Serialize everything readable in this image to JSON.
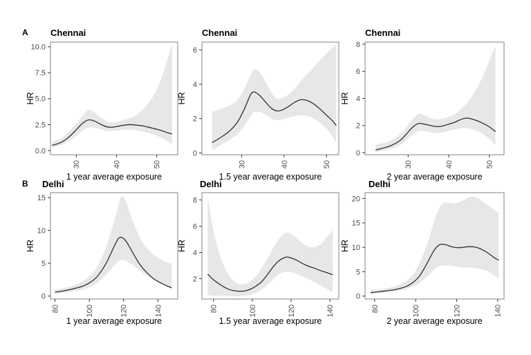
{
  "figure": {
    "background": "#ffffff",
    "colors": {
      "band": "#e7e7e7",
      "curve": "#2e2e2e",
      "panel_border": "#8c8c8c",
      "tick": "#333333",
      "tick_label": "#4d4d4d",
      "text": "#000000"
    },
    "rows": [
      {
        "letter": "A",
        "city": "Chennai"
      },
      {
        "letter": "B",
        "city": "Delhi"
      }
    ]
  },
  "chart_data": [
    {
      "type": "line",
      "title": "Chennai",
      "xlabel": "1 year average exposure",
      "ylabel": "HR",
      "row": 0,
      "col": 0,
      "xlim": [
        23.6,
        55.2
      ],
      "ylim": [
        -0.4,
        10.45
      ],
      "x_ticks": [
        30,
        40,
        50
      ],
      "x_tick_labels": [
        "30",
        "40",
        "50"
      ],
      "y_ticks": [
        0,
        2.5,
        5,
        7.5,
        10
      ],
      "y_tick_labels": [
        "0.0",
        "2.5",
        "5.0",
        "7.5",
        "10.0"
      ],
      "grid": false,
      "curve": [
        [
          24,
          0.5
        ],
        [
          26,
          0.75
        ],
        [
          28,
          1.25
        ],
        [
          30,
          2.0
        ],
        [
          31.5,
          2.6
        ],
        [
          33,
          2.95
        ],
        [
          34.5,
          2.85
        ],
        [
          36,
          2.55
        ],
        [
          37.5,
          2.3
        ],
        [
          39,
          2.25
        ],
        [
          40.5,
          2.35
        ],
        [
          42,
          2.45
        ],
        [
          43.5,
          2.5
        ],
        [
          45,
          2.45
        ],
        [
          46.5,
          2.38
        ],
        [
          48,
          2.25
        ],
        [
          49.5,
          2.1
        ],
        [
          51,
          1.95
        ],
        [
          52.5,
          1.75
        ],
        [
          53.8,
          1.6
        ]
      ],
      "band": [
        [
          24,
          0.3,
          0.85
        ],
        [
          26,
          0.5,
          1.1
        ],
        [
          28,
          0.85,
          1.75
        ],
        [
          30,
          1.4,
          2.6
        ],
        [
          31.5,
          1.9,
          3.3
        ],
        [
          33,
          2.2,
          3.95
        ],
        [
          34.5,
          2.2,
          3.7
        ],
        [
          36,
          2.05,
          3.2
        ],
        [
          37.5,
          1.9,
          2.85
        ],
        [
          39,
          1.9,
          2.7
        ],
        [
          40.5,
          1.95,
          2.8
        ],
        [
          42,
          2.0,
          2.95
        ],
        [
          43.5,
          2.0,
          3.15
        ],
        [
          45,
          1.95,
          3.45
        ],
        [
          46.5,
          1.85,
          3.95
        ],
        [
          48,
          1.7,
          4.6
        ],
        [
          49.5,
          1.5,
          5.5
        ],
        [
          51,
          1.25,
          6.8
        ],
        [
          52.5,
          0.95,
          8.6
        ],
        [
          53.8,
          0.6,
          10.3
        ]
      ]
    },
    {
      "type": "line",
      "title": "Chennai",
      "xlabel": "1.5 year average exposure",
      "ylabel": "HR",
      "row": 0,
      "col": 1,
      "xlim": [
        20.6,
        52.9
      ],
      "ylim": [
        -0.1,
        6.45
      ],
      "x_ticks": [
        30,
        40,
        50
      ],
      "x_tick_labels": [
        "30",
        "40",
        "50"
      ],
      "y_ticks": [
        0,
        2,
        4,
        6
      ],
      "y_tick_labels": [
        "0",
        "2",
        "4",
        "6"
      ],
      "grid": false,
      "curve": [
        [
          23,
          0.6
        ],
        [
          25,
          0.9
        ],
        [
          27,
          1.25
        ],
        [
          29,
          1.8
        ],
        [
          30.5,
          2.5
        ],
        [
          32,
          3.35
        ],
        [
          32.8,
          3.55
        ],
        [
          34,
          3.4
        ],
        [
          35.5,
          3.0
        ],
        [
          37,
          2.6
        ],
        [
          38.3,
          2.45
        ],
        [
          39.5,
          2.5
        ],
        [
          41,
          2.7
        ],
        [
          42.5,
          2.95
        ],
        [
          44,
          3.1
        ],
        [
          45.5,
          3.05
        ],
        [
          47,
          2.85
        ],
        [
          48.5,
          2.55
        ],
        [
          50,
          2.2
        ],
        [
          51.3,
          1.9
        ],
        [
          52.3,
          1.6
        ]
      ],
      "band": [
        [
          23,
          0.15,
          2.4
        ],
        [
          25,
          0.45,
          2.55
        ],
        [
          27,
          0.75,
          2.75
        ],
        [
          29,
          1.1,
          3.1
        ],
        [
          30.5,
          1.55,
          3.7
        ],
        [
          32,
          2.1,
          4.5
        ],
        [
          32.8,
          2.35,
          4.85
        ],
        [
          34,
          2.4,
          4.75
        ],
        [
          35.5,
          2.25,
          4.2
        ],
        [
          37,
          2.0,
          3.5
        ],
        [
          38.3,
          1.9,
          3.15
        ],
        [
          39.5,
          1.95,
          3.2
        ],
        [
          41,
          2.05,
          3.4
        ],
        [
          42.5,
          2.15,
          3.75
        ],
        [
          44,
          2.2,
          4.2
        ],
        [
          45.5,
          2.15,
          4.6
        ],
        [
          47,
          2.0,
          5.0
        ],
        [
          48.5,
          1.75,
          5.4
        ],
        [
          50,
          1.4,
          5.8
        ],
        [
          51.3,
          1.0,
          6.1
        ],
        [
          52.3,
          0.6,
          6.35
        ]
      ]
    },
    {
      "type": "line",
      "title": "Chennai",
      "xlabel": "2 year average exposure",
      "ylabel": "HR",
      "row": 0,
      "col": 2,
      "xlim": [
        19.4,
        53.6
      ],
      "ylim": [
        -0.15,
        8.15
      ],
      "x_ticks": [
        30,
        40,
        50
      ],
      "x_tick_labels": [
        "30",
        "40",
        "50"
      ],
      "y_ticks": [
        0,
        2,
        4,
        6,
        8
      ],
      "y_tick_labels": [
        "0",
        "2",
        "4",
        "6",
        "8"
      ],
      "grid": false,
      "curve": [
        [
          22,
          0.2
        ],
        [
          24,
          0.35
        ],
        [
          26,
          0.55
        ],
        [
          28,
          0.9
        ],
        [
          29.5,
          1.35
        ],
        [
          31,
          1.85
        ],
        [
          32.5,
          2.15
        ],
        [
          34,
          2.1
        ],
        [
          35.5,
          2.0
        ],
        [
          37,
          1.92
        ],
        [
          38.5,
          1.97
        ],
        [
          40,
          2.1
        ],
        [
          41.5,
          2.25
        ],
        [
          43,
          2.45
        ],
        [
          44.3,
          2.55
        ],
        [
          45.5,
          2.5
        ],
        [
          47,
          2.35
        ],
        [
          48.5,
          2.15
        ],
        [
          50,
          1.9
        ],
        [
          51.5,
          1.55
        ]
      ],
      "band": [
        [
          22,
          0.05,
          0.6
        ],
        [
          24,
          0.15,
          0.7
        ],
        [
          26,
          0.3,
          0.95
        ],
        [
          28,
          0.55,
          1.35
        ],
        [
          29.5,
          0.9,
          1.85
        ],
        [
          31,
          1.3,
          2.45
        ],
        [
          32.5,
          1.6,
          2.85
        ],
        [
          34,
          1.6,
          2.75
        ],
        [
          35.5,
          1.5,
          2.55
        ],
        [
          37,
          1.45,
          2.45
        ],
        [
          38.5,
          1.5,
          2.5
        ],
        [
          40,
          1.6,
          2.65
        ],
        [
          41.5,
          1.7,
          2.85
        ],
        [
          43,
          1.8,
          3.2
        ],
        [
          44.3,
          1.8,
          3.6
        ],
        [
          45.5,
          1.75,
          4.05
        ],
        [
          47,
          1.6,
          4.8
        ],
        [
          48.5,
          1.35,
          5.7
        ],
        [
          50,
          1.0,
          6.8
        ],
        [
          51.5,
          0.55,
          7.9
        ]
      ]
    },
    {
      "type": "line",
      "title": "Delhi",
      "xlabel": "1 year average exposure",
      "ylabel": "HR",
      "row": 1,
      "col": 0,
      "xlim": [
        77.4,
        151.5
      ],
      "ylim": [
        -0.45,
        15.75
      ],
      "x_ticks": [
        80,
        100,
        120,
        140
      ],
      "x_tick_labels": [
        "80",
        "100",
        "120",
        "140"
      ],
      "y_ticks": [
        0,
        5,
        10,
        15
      ],
      "y_tick_labels": [
        "0",
        "5",
        "10",
        "15"
      ],
      "grid": false,
      "curve": [
        [
          80,
          0.6
        ],
        [
          84,
          0.75
        ],
        [
          88,
          0.95
        ],
        [
          92,
          1.2
        ],
        [
          96,
          1.5
        ],
        [
          100,
          2.0
        ],
        [
          104,
          2.8
        ],
        [
          108,
          4.2
        ],
        [
          111,
          5.6
        ],
        [
          114,
          7.3
        ],
        [
          116.5,
          8.6
        ],
        [
          118,
          8.95
        ],
        [
          119.5,
          8.85
        ],
        [
          121,
          8.5
        ],
        [
          123,
          7.7
        ],
        [
          126,
          6.3
        ],
        [
          129,
          5.0
        ],
        [
          132,
          4.0
        ],
        [
          135,
          3.2
        ],
        [
          138,
          2.55
        ],
        [
          141,
          2.1
        ],
        [
          144,
          1.7
        ],
        [
          148,
          1.25
        ]
      ],
      "band": [
        [
          80,
          0.35,
          1.0
        ],
        [
          84,
          0.45,
          1.15
        ],
        [
          88,
          0.6,
          1.4
        ],
        [
          92,
          0.8,
          1.75
        ],
        [
          96,
          1.0,
          2.25
        ],
        [
          100,
          1.35,
          3.0
        ],
        [
          104,
          1.9,
          4.2
        ],
        [
          108,
          2.8,
          6.3
        ],
        [
          111,
          3.6,
          8.4
        ],
        [
          114,
          4.5,
          11.0
        ],
        [
          116.5,
          5.2,
          13.3
        ],
        [
          118,
          5.5,
          14.8
        ],
        [
          119.5,
          5.5,
          15.2
        ],
        [
          121,
          5.4,
          14.6
        ],
        [
          123,
          5.1,
          13.2
        ],
        [
          126,
          4.6,
          11.0
        ],
        [
          129,
          4.0,
          9.2
        ],
        [
          132,
          3.4,
          7.8
        ],
        [
          135,
          2.9,
          6.9
        ],
        [
          138,
          2.4,
          6.2
        ],
        [
          141,
          2.0,
          5.7
        ],
        [
          144,
          1.6,
          5.3
        ],
        [
          148,
          1.1,
          4.9
        ]
      ]
    },
    {
      "type": "line",
      "title": "Delhi",
      "xlabel": "1.5 year average exposure",
      "ylabel": "HR",
      "row": 1,
      "col": 1,
      "xlim": [
        74.0,
        144.6
      ],
      "ylim": [
        0.45,
        8.55
      ],
      "x_ticks": [
        80,
        100,
        120,
        140
      ],
      "x_tick_labels": [
        "80",
        "100",
        "120",
        "140"
      ],
      "y_ticks": [
        2,
        4,
        6,
        8
      ],
      "y_tick_labels": [
        "2",
        "4",
        "6",
        "8"
      ],
      "grid": false,
      "curve": [
        [
          77,
          2.35
        ],
        [
          79,
          2.05
        ],
        [
          81,
          1.8
        ],
        [
          84,
          1.5
        ],
        [
          87,
          1.25
        ],
        [
          90,
          1.1
        ],
        [
          93,
          1.05
        ],
        [
          96,
          1.07
        ],
        [
          99,
          1.2
        ],
        [
          102,
          1.45
        ],
        [
          105,
          1.8
        ],
        [
          108,
          2.35
        ],
        [
          111,
          2.95
        ],
        [
          114,
          3.4
        ],
        [
          116.5,
          3.6
        ],
        [
          118,
          3.65
        ],
        [
          120,
          3.58
        ],
        [
          123,
          3.4
        ],
        [
          126,
          3.15
        ],
        [
          129,
          2.95
        ],
        [
          132,
          2.8
        ],
        [
          135,
          2.63
        ],
        [
          138,
          2.48
        ],
        [
          141.5,
          2.3
        ]
      ],
      "band": [
        [
          77,
          0.75,
          8.3
        ],
        [
          79,
          0.72,
          6.4
        ],
        [
          81,
          0.7,
          5.0
        ],
        [
          84,
          0.7,
          3.5
        ],
        [
          87,
          0.7,
          2.5
        ],
        [
          90,
          0.68,
          1.9
        ],
        [
          93,
          0.67,
          1.6
        ],
        [
          96,
          0.7,
          1.6
        ],
        [
          99,
          0.78,
          1.8
        ],
        [
          102,
          0.95,
          2.25
        ],
        [
          105,
          1.2,
          2.85
        ],
        [
          108,
          1.55,
          3.6
        ],
        [
          111,
          2.0,
          4.4
        ],
        [
          114,
          2.35,
          5.1
        ],
        [
          116.5,
          2.5,
          5.45
        ],
        [
          118,
          2.52,
          5.5
        ],
        [
          120,
          2.5,
          5.4
        ],
        [
          123,
          2.35,
          5.1
        ],
        [
          126,
          2.15,
          4.7
        ],
        [
          129,
          1.95,
          4.45
        ],
        [
          132,
          1.75,
          4.4
        ],
        [
          135,
          1.5,
          4.6
        ],
        [
          138,
          1.25,
          5.1
        ],
        [
          141.5,
          0.95,
          5.7
        ]
      ]
    },
    {
      "type": "line",
      "title": "Delhi",
      "xlabel": "2 year average exposure",
      "ylabel": "HR",
      "row": 1,
      "col": 2,
      "xlim": [
        75.3,
        143.1
      ],
      "ylim": [
        -0.6,
        21.2
      ],
      "x_ticks": [
        80,
        100,
        120,
        140
      ],
      "x_tick_labels": [
        "80",
        "100",
        "120",
        "140"
      ],
      "y_ticks": [
        0,
        5,
        10,
        15,
        20
      ],
      "y_tick_labels": [
        "0",
        "5",
        "10",
        "15",
        "20"
      ],
      "grid": false,
      "curve": [
        [
          78,
          0.7
        ],
        [
          81,
          0.85
        ],
        [
          84,
          1.0
        ],
        [
          87,
          1.15
        ],
        [
          90,
          1.35
        ],
        [
          93,
          1.65
        ],
        [
          96,
          2.1
        ],
        [
          99,
          2.9
        ],
        [
          102,
          4.2
        ],
        [
          105,
          6.3
        ],
        [
          107.5,
          8.3
        ],
        [
          109.5,
          9.7
        ],
        [
          111.5,
          10.5
        ],
        [
          113,
          10.65
        ],
        [
          115,
          10.5
        ],
        [
          117,
          10.2
        ],
        [
          119,
          10.0
        ],
        [
          121,
          9.92
        ],
        [
          123,
          10.0
        ],
        [
          125,
          10.1
        ],
        [
          127,
          10.15
        ],
        [
          129,
          10.05
        ],
        [
          131,
          9.8
        ],
        [
          133,
          9.4
        ],
        [
          135,
          8.9
        ],
        [
          137,
          8.3
        ],
        [
          139,
          7.7
        ],
        [
          140.5,
          7.4
        ]
      ],
      "band": [
        [
          78,
          0.45,
          1.25
        ],
        [
          84,
          0.7,
          1.5
        ],
        [
          90,
          1.0,
          2.0
        ],
        [
          95,
          1.4,
          3.0
        ],
        [
          99,
          2.0,
          4.6
        ],
        [
          102,
          2.7,
          6.9
        ],
        [
          105,
          3.8,
          10.0
        ],
        [
          107.5,
          4.8,
          13.2
        ],
        [
          109.5,
          5.6,
          16.0
        ],
        [
          111.5,
          6.1,
          18.0
        ],
        [
          113,
          6.3,
          18.9
        ],
        [
          115,
          6.35,
          19.2
        ],
        [
          117,
          6.25,
          19.1
        ],
        [
          119,
          6.1,
          19.0
        ],
        [
          121,
          6.0,
          19.2
        ],
        [
          123,
          5.9,
          19.6
        ],
        [
          125,
          5.85,
          20.1
        ],
        [
          127,
          5.8,
          20.4
        ],
        [
          129,
          5.75,
          20.3
        ],
        [
          131,
          5.6,
          19.9
        ],
        [
          133,
          5.4,
          19.3
        ],
        [
          135,
          5.1,
          18.7
        ],
        [
          137,
          4.6,
          18.1
        ],
        [
          139,
          4.0,
          17.5
        ],
        [
          140.5,
          3.5,
          17.2
        ]
      ]
    }
  ]
}
